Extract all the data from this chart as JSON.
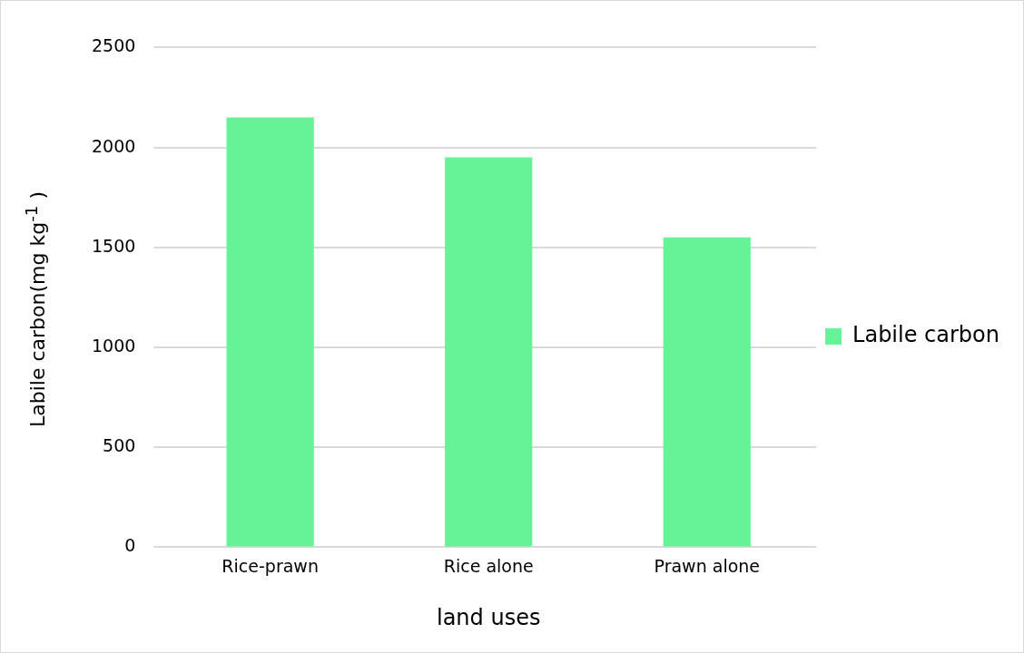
{
  "chart_data": {
    "type": "bar",
    "xlabel": "land uses",
    "ylabel": "Labile carbon(mg kg$^{-1}$ )",
    "categories": [
      "Rice-prawn",
      "Rice alone",
      "Prawn alone"
    ],
    "series": [
      {
        "name": "Labile carbon",
        "color": "#66f296",
        "values": [
          2150,
          1950,
          1550
        ]
      }
    ],
    "ylim": [
      0,
      2500
    ],
    "yticks": [
      0,
      500,
      1000,
      1500,
      2000,
      2500
    ],
    "grid": "y",
    "legend": "right"
  }
}
